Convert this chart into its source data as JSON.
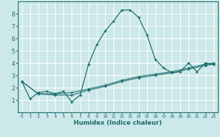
{
  "xlabel": "Humidex (Indice chaleur)",
  "bg_color": "#cce8e8",
  "grid_color": "#ffffff",
  "line_color": "#1a6b6b",
  "xlim": [
    -0.5,
    23.5
  ],
  "ylim": [
    0,
    9
  ],
  "xticks": [
    0,
    1,
    2,
    3,
    4,
    5,
    6,
    7,
    8,
    9,
    10,
    11,
    12,
    13,
    14,
    15,
    16,
    17,
    18,
    19,
    20,
    21,
    22,
    23
  ],
  "yticks": [
    1,
    2,
    3,
    4,
    5,
    6,
    7,
    8
  ],
  "line1_x": [
    0,
    1,
    2,
    3,
    4,
    5,
    6,
    7,
    8,
    9,
    10,
    11,
    12,
    13,
    14,
    15,
    16,
    17,
    18,
    19,
    20,
    21,
    22,
    23
  ],
  "line1_y": [
    2.5,
    1.1,
    1.6,
    1.7,
    1.5,
    1.7,
    0.85,
    1.4,
    3.9,
    5.5,
    6.6,
    7.4,
    8.3,
    8.3,
    7.7,
    6.3,
    4.3,
    3.6,
    3.2,
    3.3,
    4.0,
    3.3,
    4.0,
    3.9
  ],
  "line2_x": [
    0,
    2,
    4,
    6,
    8,
    10,
    12,
    14,
    16,
    18,
    20,
    22,
    23
  ],
  "line2_y": [
    2.5,
    1.5,
    1.4,
    1.4,
    1.8,
    2.1,
    2.5,
    2.8,
    3.0,
    3.2,
    3.5,
    3.8,
    3.9
  ],
  "line3_x": [
    0,
    2,
    4,
    6,
    8,
    10,
    12,
    14,
    16,
    18,
    20,
    22,
    23
  ],
  "line3_y": [
    2.5,
    1.5,
    1.5,
    1.6,
    1.9,
    2.2,
    2.6,
    2.9,
    3.1,
    3.3,
    3.6,
    3.9,
    4.0
  ]
}
